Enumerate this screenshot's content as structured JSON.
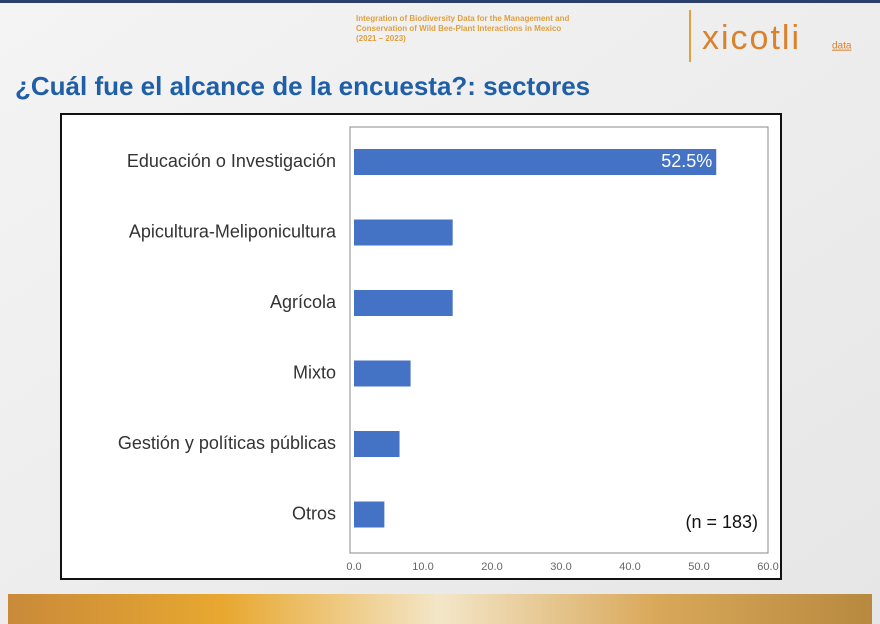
{
  "header": {
    "project": [
      "Integration of Biodiversity Data for the Management and",
      "Conservation of Wild Bee-Plant Interactions in Mexico",
      "(2021 – 2023)"
    ],
    "logo": "xicotli",
    "logo_sub": "data"
  },
  "chart_data": {
    "type": "barh",
    "title": "¿Cuál fue el alcance de la encuesta?: sectores",
    "categories": [
      "Educación o Investigación",
      "Apicultura-Meliponicultura",
      "Agrícola",
      "Mixto",
      "Gestión y políticas públicas",
      "Otros"
    ],
    "values": [
      52.5,
      14.3,
      14.3,
      8.2,
      6.6,
      4.4
    ],
    "value_labels": [
      "52.5%",
      null,
      null,
      null,
      null,
      null
    ],
    "color": "#4472c4",
    "xlim": [
      0,
      60
    ],
    "xticks": [
      {
        "value": 0,
        "label": "0.0"
      },
      {
        "value": 10,
        "label": "10.0"
      },
      {
        "value": 20,
        "label": "20.0"
      },
      {
        "value": 30,
        "label": "30.0"
      },
      {
        "value": 40,
        "label": "40.0"
      },
      {
        "value": 50,
        "label": "50.0"
      },
      {
        "value": 60,
        "label": "60.0"
      }
    ],
    "grid": false,
    "annotation": "(n = 183)"
  }
}
